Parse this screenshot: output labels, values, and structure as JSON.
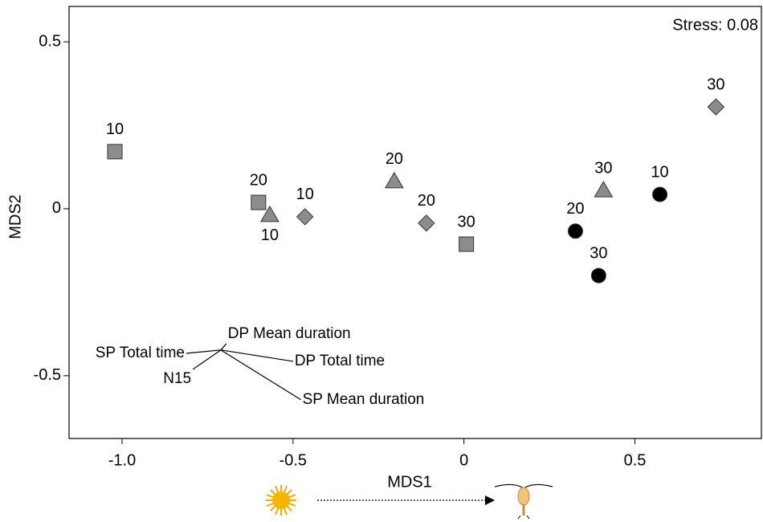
{
  "chart_data": {
    "type": "scatter",
    "xlabel": "MDS1",
    "ylabel": "MDS2",
    "annotation": "Stress: 0.08",
    "xlim": [
      -1.155,
      0.87
    ],
    "ylim": [
      -0.688,
      0.606
    ],
    "xticks": [
      {
        "value": -1.0,
        "label": "-1.0"
      },
      -0.5,
      0,
      0.5
    ],
    "yticks": [
      -0.5,
      0,
      0.5
    ],
    "series": [
      {
        "marker": "square",
        "color": "#8c8c8c",
        "x": [
          -1.021,
          -0.601,
          0.007
        ],
        "y": [
          0.171,
          0.019,
          -0.106
        ],
        "point_labels": [
          10,
          20,
          30
        ]
      },
      {
        "marker": "triangle",
        "color": "#8c8c8c",
        "x": [
          -0.568,
          -0.204,
          0.408
        ],
        "y": [
          -0.019,
          0.082,
          0.055
        ],
        "point_labels": [
          10,
          20,
          30
        ]
      },
      {
        "marker": "diamond",
        "color": "#8c8c8c",
        "x": [
          -0.465,
          -0.11,
          0.737
        ],
        "y": [
          -0.024,
          -0.043,
          0.305
        ],
        "point_labels": [
          10,
          20,
          30
        ]
      },
      {
        "marker": "circle",
        "color": "#000000",
        "x": [
          0.573,
          0.326,
          0.394
        ],
        "y": [
          0.043,
          -0.067,
          -0.2
        ],
        "point_labels": [
          10,
          20,
          30
        ]
      }
    ],
    "vector_origin": [
      -0.711,
      -0.423
    ],
    "vectors": [
      {
        "label": "SP Total time",
        "x": -0.812,
        "y": -0.433
      },
      {
        "label": "DP Mean duration",
        "x": -0.695,
        "y": -0.404
      },
      {
        "label": "DP  Total time",
        "x": -0.5,
        "y": -0.457
      },
      {
        "label": "SP Mean duration",
        "x": -0.477,
        "y": -0.572
      },
      {
        "label": "N15",
        "x": -0.793,
        "y": -0.481
      }
    ]
  }
}
